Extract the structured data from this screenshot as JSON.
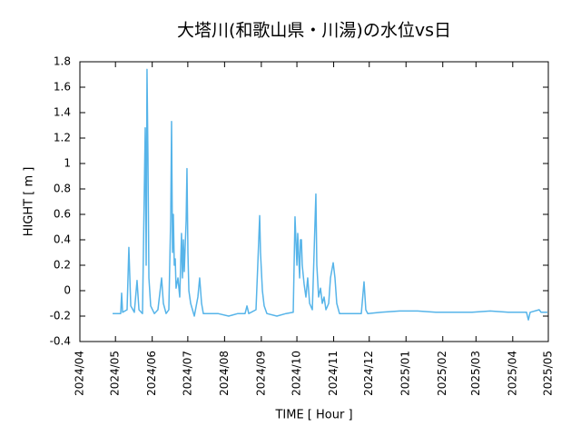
{
  "chart_data": {
    "type": "line",
    "title": "大塔川(和歌山県・川湯)の水位vs日",
    "x_label": "TIME [ Hour ]",
    "y_label": "HIGHT [ m ]",
    "color": "#56b4e9",
    "x": [
      27.6,
      34.4,
      35.2,
      36.0,
      39.8,
      41.3,
      42.9,
      45.9,
      48.2,
      49.8,
      52.8,
      55.1,
      55.9,
      56.6,
      57.4,
      58.2,
      59.7,
      62.8,
      65.8,
      68.9,
      70.4,
      72.7,
      75.0,
      76.6,
      77.3,
      78.1,
      78.8,
      79.6,
      80.4,
      81.1,
      82.7,
      84.2,
      85.7,
      86.5,
      87.3,
      88.0,
      89.6,
      90.3,
      91.1,
      91.9,
      93.4,
      96.5,
      99.5,
      101.0,
      102.6,
      104.1,
      116.4,
      125.5,
      133.2,
      139.3,
      140.9,
      142.4,
      148.5,
      150.0,
      151.6,
      152.3,
      153.9,
      155.4,
      157.7,
      166.1,
      173.8,
      179.9,
      181.4,
      183.0,
      183.7,
      185.3,
      186.0,
      186.8,
      187.5,
      189.1,
      190.6,
      192.1,
      193.7,
      196.0,
      197.5,
      199.0,
      199.8,
      201.3,
      202.9,
      204.4,
      205.9,
      207.5,
      209.8,
      211.3,
      213.6,
      215.1,
      216.6,
      218.9,
      237.3,
      239.6,
      241.1,
      242.7,
      254.1,
      269.5,
      284.8,
      300.1,
      315.4,
      330.7,
      346.0,
      361.3,
      376.6,
      378.2,
      379.7,
      387.3,
      388.9,
      394.2
    ],
    "values": [
      -0.18,
      -0.18,
      -0.02,
      -0.17,
      -0.15,
      0.34,
      -0.12,
      -0.17,
      0.08,
      -0.15,
      -0.18,
      1.28,
      0.2,
      1.74,
      1.05,
      0.1,
      -0.12,
      -0.18,
      -0.15,
      0.1,
      -0.1,
      -0.18,
      -0.15,
      0.58,
      1.33,
      0.3,
      0.6,
      0.2,
      0.25,
      0.02,
      0.1,
      -0.05,
      0.45,
      0.1,
      0.4,
      0.15,
      0.55,
      0.96,
      0.3,
      0.0,
      -0.1,
      -0.2,
      -0.05,
      0.1,
      -0.1,
      -0.18,
      -0.18,
      -0.2,
      -0.18,
      -0.18,
      -0.12,
      -0.18,
      -0.15,
      0.2,
      0.59,
      0.3,
      0.0,
      -0.12,
      -0.18,
      -0.2,
      -0.18,
      -0.17,
      0.58,
      0.2,
      0.45,
      0.1,
      0.4,
      0.4,
      0.2,
      0.05,
      -0.05,
      0.1,
      -0.1,
      -0.15,
      0.3,
      0.76,
      0.2,
      -0.05,
      0.02,
      -0.1,
      -0.05,
      -0.15,
      -0.1,
      0.1,
      0.22,
      0.1,
      -0.1,
      -0.18,
      -0.18,
      0.07,
      -0.15,
      -0.18,
      -0.17,
      -0.16,
      -0.16,
      -0.17,
      -0.17,
      -0.17,
      -0.16,
      -0.17,
      -0.17,
      -0.23,
      -0.17,
      -0.15,
      -0.17,
      -0.17
    ],
    "xlim": [
      0,
      395
    ],
    "xticks": [
      {
        "value": 0,
        "label": "2024/04"
      },
      {
        "value": 30,
        "label": "2024/05"
      },
      {
        "value": 61,
        "label": "2024/06"
      },
      {
        "value": 91,
        "label": "2024/07"
      },
      {
        "value": 122,
        "label": "2024/08"
      },
      {
        "value": 153,
        "label": "2024/09"
      },
      {
        "value": 183,
        "label": "2024/10"
      },
      {
        "value": 214,
        "label": "2024/11"
      },
      {
        "value": 244,
        "label": "2024/12"
      },
      {
        "value": 275,
        "label": "2025/01"
      },
      {
        "value": 306,
        "label": "2025/02"
      },
      {
        "value": 334,
        "label": "2025/03"
      },
      {
        "value": 365,
        "label": "2025/04"
      },
      {
        "value": 395,
        "label": "2025/05"
      }
    ],
    "ylim": [
      -0.4,
      1.8
    ],
    "yticks": [
      -0.4,
      -0.2,
      0,
      0.2,
      0.4,
      0.6,
      0.8,
      1,
      1.2,
      1.4,
      1.6,
      1.8
    ],
    "grid": false
  }
}
